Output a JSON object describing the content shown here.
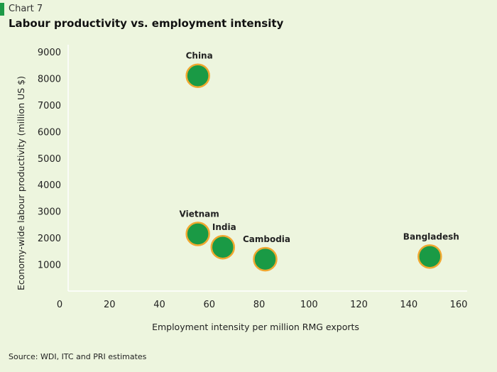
{
  "header": {
    "chart_number": "Chart 7",
    "title": "Labour productivity vs. employment intensity"
  },
  "source": "Source: WDI, ITC and PRI estimates",
  "colors": {
    "background": "#edf5de",
    "accent": "#1e9a47",
    "marker_fill": "#1a9a45",
    "marker_ring": "#f0a830",
    "axis": "#ffffff"
  },
  "chart_data": {
    "type": "scatter",
    "title": "Labour productivity vs. employment intensity",
    "xlabel": "Employment intensity per million RMG exports",
    "ylabel": "Economy-wide labour productivity (million US $)",
    "xlim": [
      0,
      160
    ],
    "ylim": [
      0,
      9000
    ],
    "x_ticks": [
      0,
      20,
      40,
      60,
      80,
      100,
      120,
      140,
      160
    ],
    "y_ticks": [
      1000,
      2000,
      3000,
      4000,
      5000,
      6000,
      7000,
      8000,
      9000
    ],
    "grid": false,
    "points": [
      {
        "label": "China",
        "x": 52,
        "y": 8100
      },
      {
        "label": "Vietnam",
        "x": 52,
        "y": 2150
      },
      {
        "label": "India",
        "x": 62,
        "y": 1650
      },
      {
        "label": "Cambodia",
        "x": 79,
        "y": 1200
      },
      {
        "label": "Bangladesh",
        "x": 145,
        "y": 1300
      }
    ]
  }
}
